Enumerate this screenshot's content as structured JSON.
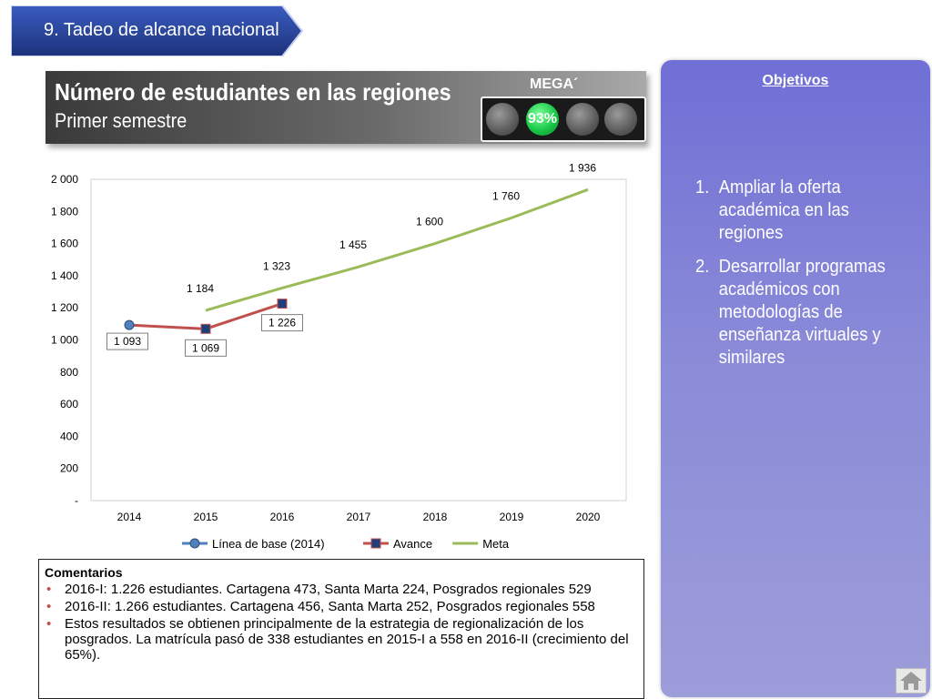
{
  "header": {
    "section_label": "9. Tadeo de alcance nacional",
    "title": "Número de estudiantes en las regiones",
    "subtitle": "Primer semestre",
    "mega_label": "MEGA´",
    "mega_percent": "93%",
    "colors": {
      "tag": "#1f3a8a",
      "light_on": "#19c948"
    }
  },
  "objectives": {
    "title": "Objetivos",
    "items": [
      {
        "num": "1.",
        "text": "Ampliar la oferta académica en las regiones"
      },
      {
        "num": "2.",
        "text": "Desarrollar programas académicos con metodologías de enseñanza virtuales y similares"
      }
    ]
  },
  "chart_data": {
    "type": "line",
    "categories": [
      "2014",
      "2015",
      "2016",
      "2017",
      "2018",
      "2019",
      "2020"
    ],
    "ylim": [
      0,
      2000
    ],
    "yticks": [
      0,
      200,
      400,
      600,
      800,
      1000,
      1200,
      1400,
      1600,
      1800,
      2000
    ],
    "ytick_labels": [
      "-",
      "200",
      "400",
      "600",
      "800",
      "1 000",
      "1 200",
      "1 400",
      "1 600",
      "1 800",
      "2 000"
    ],
    "legend_position": "bottom",
    "series": [
      {
        "name": "Línea de base (2014)",
        "color": "#4f81bd",
        "marker": "circle",
        "values": [
          1093,
          null,
          null,
          null,
          null,
          null,
          null
        ],
        "labels": [
          "1 093"
        ]
      },
      {
        "name": "Avance",
        "color": "#1f3f7a",
        "line_color": "#c0504d",
        "marker": "square",
        "values": [
          1093,
          1069,
          1226,
          null,
          null,
          null,
          null
        ],
        "labels": [
          "",
          "1 069",
          "1 226"
        ]
      },
      {
        "name": "Meta",
        "color": "#9bbb59",
        "marker": "none",
        "values": [
          null,
          1184,
          1323,
          1455,
          1600,
          1760,
          1936
        ],
        "labels": [
          "",
          "1 184",
          "1 323",
          "1 455",
          "1 600",
          "1 760",
          "1 936"
        ]
      }
    ]
  },
  "comments": {
    "title": "Comentarios",
    "items": [
      "2016-I: 1.226 estudiantes. Cartagena 473, Santa Marta 224, Posgrados regionales 529",
      "2016-II: 1.266 estudiantes. Cartagena 456, Santa Marta 252, Posgrados regionales 558",
      "Estos resultados se obtienen principalmente de la estrategia de regionalización de los posgrados. La matrícula pasó de 338 estudiantes en 2015-I a 558 en 2016-II (crecimiento del 65%)."
    ],
    "bullet_color": "#c0504d"
  }
}
